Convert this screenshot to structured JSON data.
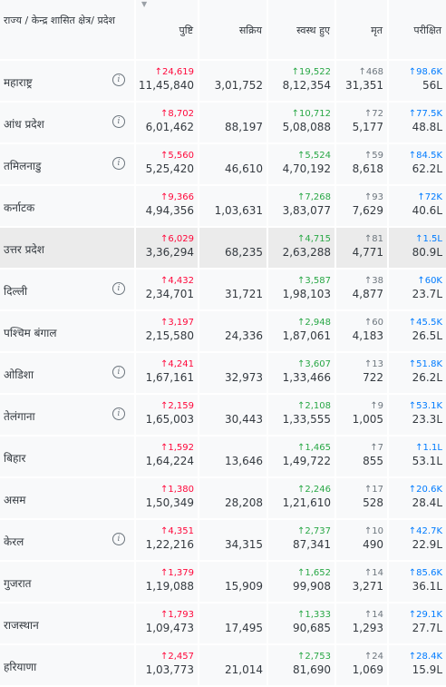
{
  "header": {
    "state": "राज्य / केन्द्र शासित क्षेत्र/ प्रदेश",
    "confirmed": "पुष्टि",
    "active": "सक्रिय",
    "recovered": "स्वस्थ हुए",
    "deceased": "मृत",
    "tested": "परीक्षित"
  },
  "rows": [
    {
      "name": "महाराष्ट्र",
      "info": true,
      "c_delta": "↑24,619",
      "c": "11,45,840",
      "a": "3,01,752",
      "r_delta": "↑19,522",
      "r": "8,12,354",
      "d_delta": "↑468",
      "d": "31,351",
      "t_delta": "↑98.6K",
      "t": "56L"
    },
    {
      "name": "आंध प्रदेश",
      "info": true,
      "c_delta": "↑8,702",
      "c": "6,01,462",
      "a": "88,197",
      "r_delta": "↑10,712",
      "r": "5,08,088",
      "d_delta": "↑72",
      "d": "5,177",
      "t_delta": "↑77.5K",
      "t": "48.8L"
    },
    {
      "name": "तमिलनाडु",
      "info": true,
      "c_delta": "↑5,560",
      "c": "5,25,420",
      "a": "46,610",
      "r_delta": "↑5,524",
      "r": "4,70,192",
      "d_delta": "↑59",
      "d": "8,618",
      "t_delta": "↑84.5K",
      "t": "62.2L"
    },
    {
      "name": "कर्नाटक",
      "info": false,
      "c_delta": "↑9,366",
      "c": "4,94,356",
      "a": "1,03,631",
      "r_delta": "↑7,268",
      "r": "3,83,077",
      "d_delta": "↑93",
      "d": "7,629",
      "t_delta": "↑72K",
      "t": "40.6L"
    },
    {
      "name": "उत्तर प्रदेश",
      "info": false,
      "highlight": true,
      "c_delta": "↑6,029",
      "c": "3,36,294",
      "a": "68,235",
      "r_delta": "↑4,715",
      "r": "2,63,288",
      "d_delta": "↑81",
      "d": "4,771",
      "t_delta": "↑1.5L",
      "t": "80.9L"
    },
    {
      "name": "दिल्ली",
      "info": true,
      "c_delta": "↑4,432",
      "c": "2,34,701",
      "a": "31,721",
      "r_delta": "↑3,587",
      "r": "1,98,103",
      "d_delta": "↑38",
      "d": "4,877",
      "t_delta": "↑60K",
      "t": "23.7L"
    },
    {
      "name": "पश्चिम बंगाल",
      "info": false,
      "c_delta": "↑3,197",
      "c": "2,15,580",
      "a": "24,336",
      "r_delta": "↑2,948",
      "r": "1,87,061",
      "d_delta": "↑60",
      "d": "4,183",
      "t_delta": "↑45.5K",
      "t": "26.5L"
    },
    {
      "name": "ओडिशा",
      "info": true,
      "c_delta": "↑4,241",
      "c": "1,67,161",
      "a": "32,973",
      "r_delta": "↑3,607",
      "r": "1,33,466",
      "d_delta": "↑13",
      "d": "722",
      "t_delta": "↑51.8K",
      "t": "26.2L"
    },
    {
      "name": "तेलंगाना",
      "info": true,
      "c_delta": "↑2,159",
      "c": "1,65,003",
      "a": "30,443",
      "r_delta": "↑2,108",
      "r": "1,33,555",
      "d_delta": "↑9",
      "d": "1,005",
      "t_delta": "↑53.1K",
      "t": "23.3L"
    },
    {
      "name": "बिहार",
      "info": false,
      "c_delta": "↑1,592",
      "c": "1,64,224",
      "a": "13,646",
      "r_delta": "↑1,465",
      "r": "1,49,722",
      "d_delta": "↑7",
      "d": "855",
      "t_delta": "↑1.1L",
      "t": "53.1L"
    },
    {
      "name": "असम",
      "info": false,
      "c_delta": "↑1,380",
      "c": "1,50,349",
      "a": "28,208",
      "r_delta": "↑2,246",
      "r": "1,21,610",
      "d_delta": "↑17",
      "d": "528",
      "t_delta": "↑20.6K",
      "t": "28.4L"
    },
    {
      "name": "केरल",
      "info": true,
      "c_delta": "↑4,351",
      "c": "1,22,216",
      "a": "34,315",
      "r_delta": "↑2,737",
      "r": "87,341",
      "d_delta": "↑10",
      "d": "490",
      "t_delta": "↑42.7K",
      "t": "22.9L"
    },
    {
      "name": "गुजरात",
      "info": false,
      "c_delta": "↑1,379",
      "c": "1,19,088",
      "a": "15,909",
      "r_delta": "↑1,652",
      "r": "99,908",
      "d_delta": "↑14",
      "d": "3,271",
      "t_delta": "↑85.6K",
      "t": "36.1L"
    },
    {
      "name": "राजस्थान",
      "info": false,
      "c_delta": "↑1,793",
      "c": "1,09,473",
      "a": "17,495",
      "r_delta": "↑1,333",
      "r": "90,685",
      "d_delta": "↑14",
      "d": "1,293",
      "t_delta": "↑29.1K",
      "t": "27.7L"
    },
    {
      "name": "हरियाणा",
      "info": false,
      "c_delta": "↑2,457",
      "c": "1,03,773",
      "a": "21,014",
      "r_delta": "↑2,753",
      "r": "81,690",
      "d_delta": "↑24",
      "d": "1,069",
      "t_delta": "↑28.4K",
      "t": "15.9L"
    }
  ]
}
